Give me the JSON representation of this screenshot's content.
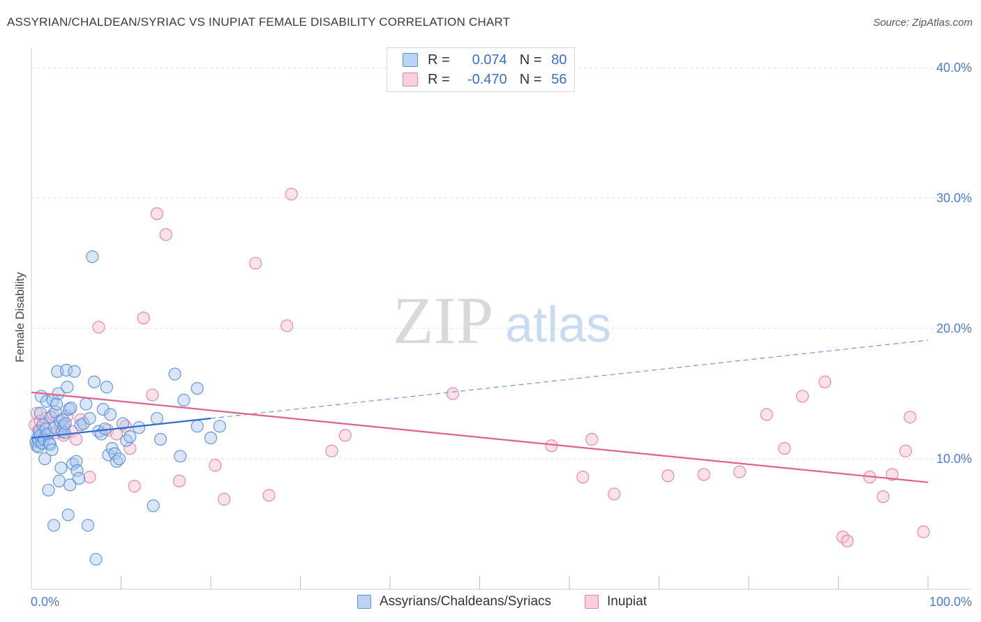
{
  "title": "ASSYRIAN/CHALDEAN/SYRIAC VS INUPIAT FEMALE DISABILITY CORRELATION CHART",
  "source": "Source: ZipAtlas.com",
  "watermark": {
    "zip": "ZIP",
    "atlas": "atlas"
  },
  "legend": {
    "r_label": "R =",
    "n_label": "N =",
    "rows": [
      {
        "r": "0.074",
        "n": "80"
      },
      {
        "r": "-0.470",
        "n": "56"
      }
    ]
  },
  "colors": {
    "blue_fill": "#a9c8f0",
    "blue_stroke": "#5a8fd8",
    "blue_line": "#2f6ecf",
    "pink_fill": "#f7bfd0",
    "pink_stroke": "#e77fa0",
    "pink_line": "#e0608e",
    "tick_text": "#4a7cc8",
    "grid": "#dddddd"
  },
  "chart_data": {
    "type": "scatter",
    "title": "ASSYRIAN/CHALDEAN/SYRIAC VS INUPIAT FEMALE DISABILITY CORRELATION CHART",
    "xlabel": "",
    "ylabel": "Female Disability",
    "xlim": [
      0,
      100
    ],
    "ylim": [
      0,
      40
    ],
    "x_tick_labels": [
      "0.0%",
      "100.0%"
    ],
    "y_ticks": [
      10,
      20,
      30,
      40
    ],
    "y_tick_labels": [
      "10.0%",
      "20.0%",
      "30.0%",
      "40.0%"
    ],
    "grid": true,
    "legend_position": "top-center",
    "series": [
      {
        "name": "Assyrians/Chaldeans/Syriacs",
        "r": 0.074,
        "n": 80,
        "trend": {
          "x0": 0,
          "y0": 11.6,
          "x1": 20,
          "y1": 13.1,
          "dashed_to": 100,
          "y_end": 19.1
        },
        "points": [
          [
            0.5,
            11.3
          ],
          [
            0.6,
            11.0
          ],
          [
            0.7,
            11.6
          ],
          [
            0.8,
            10.9
          ],
          [
            0.8,
            11.4
          ],
          [
            0.9,
            12.1
          ],
          [
            1.0,
            11.8
          ],
          [
            1.0,
            13.5
          ],
          [
            1.1,
            14.8
          ],
          [
            1.2,
            11.2
          ],
          [
            1.3,
            12.6
          ],
          [
            1.4,
            11.5
          ],
          [
            1.5,
            10.0
          ],
          [
            1.6,
            12.3
          ],
          [
            1.7,
            14.4
          ],
          [
            1.8,
            11.9
          ],
          [
            1.9,
            7.6
          ],
          [
            2.0,
            11.2
          ],
          [
            2.1,
            11.1
          ],
          [
            2.2,
            13.2
          ],
          [
            2.3,
            10.7
          ],
          [
            2.4,
            14.5
          ],
          [
            2.5,
            4.9
          ],
          [
            2.6,
            12.4
          ],
          [
            2.7,
            13.6
          ],
          [
            2.8,
            14.2
          ],
          [
            2.9,
            16.7
          ],
          [
            3.0,
            15.0
          ],
          [
            3.1,
            8.3
          ],
          [
            3.2,
            12.9
          ],
          [
            3.3,
            9.3
          ],
          [
            3.4,
            12.1
          ],
          [
            3.5,
            13.0
          ],
          [
            3.6,
            12.5
          ],
          [
            3.7,
            12.0
          ],
          [
            3.8,
            12.7
          ],
          [
            3.9,
            16.8
          ],
          [
            4.0,
            15.5
          ],
          [
            4.1,
            5.7
          ],
          [
            4.2,
            13.8
          ],
          [
            4.3,
            8.0
          ],
          [
            4.4,
            13.9
          ],
          [
            4.6,
            9.6
          ],
          [
            4.8,
            16.7
          ],
          [
            5.0,
            9.8
          ],
          [
            5.1,
            9.1
          ],
          [
            5.3,
            8.5
          ],
          [
            5.5,
            12.6
          ],
          [
            5.8,
            12.7
          ],
          [
            6.1,
            14.2
          ],
          [
            6.3,
            4.9
          ],
          [
            6.5,
            13.1
          ],
          [
            7.0,
            15.9
          ],
          [
            7.2,
            2.3
          ],
          [
            7.5,
            12.1
          ],
          [
            7.8,
            11.9
          ],
          [
            8.0,
            13.8
          ],
          [
            8.2,
            12.3
          ],
          [
            8.4,
            15.5
          ],
          [
            8.6,
            10.3
          ],
          [
            8.8,
            13.4
          ],
          [
            9.0,
            10.8
          ],
          [
            9.3,
            10.4
          ],
          [
            9.5,
            9.8
          ],
          [
            9.8,
            10.0
          ],
          [
            10.2,
            12.7
          ],
          [
            10.6,
            11.4
          ],
          [
            11.0,
            11.7
          ],
          [
            12.0,
            12.4
          ],
          [
            13.6,
            6.4
          ],
          [
            14.0,
            13.1
          ],
          [
            14.4,
            11.5
          ],
          [
            16.0,
            16.5
          ],
          [
            16.6,
            10.2
          ],
          [
            17.0,
            14.5
          ],
          [
            18.5,
            12.5
          ],
          [
            20.0,
            11.6
          ],
          [
            21.0,
            12.5
          ],
          [
            6.8,
            25.5
          ],
          [
            18.5,
            15.4
          ]
        ]
      },
      {
        "name": "Inupiat",
        "r": -0.47,
        "n": 56,
        "trend": {
          "x0": 0,
          "y0": 15.1,
          "x1": 100,
          "y1": 8.2
        },
        "points": [
          [
            0.4,
            12.6
          ],
          [
            0.6,
            13.5
          ],
          [
            0.8,
            12.2
          ],
          [
            1.0,
            12.9
          ],
          [
            1.2,
            11.8
          ],
          [
            1.4,
            12.0
          ],
          [
            1.6,
            13.1
          ],
          [
            2.0,
            12.7
          ],
          [
            2.4,
            13.4
          ],
          [
            2.8,
            12.0
          ],
          [
            3.2,
            12.5
          ],
          [
            3.6,
            11.8
          ],
          [
            4.0,
            13.3
          ],
          [
            4.5,
            12.1
          ],
          [
            5.0,
            11.5
          ],
          [
            5.5,
            13.0
          ],
          [
            6.5,
            8.6
          ],
          [
            7.5,
            20.1
          ],
          [
            8.5,
            12.2
          ],
          [
            9.5,
            11.9
          ],
          [
            10.5,
            12.5
          ],
          [
            11.0,
            10.8
          ],
          [
            11.5,
            7.9
          ],
          [
            12.5,
            20.8
          ],
          [
            13.5,
            14.9
          ],
          [
            14.0,
            28.8
          ],
          [
            15.0,
            27.2
          ],
          [
            16.5,
            8.3
          ],
          [
            20.5,
            9.5
          ],
          [
            21.5,
            6.9
          ],
          [
            25.0,
            25.0
          ],
          [
            26.5,
            7.2
          ],
          [
            28.5,
            20.2
          ],
          [
            29.0,
            30.3
          ],
          [
            33.5,
            10.6
          ],
          [
            35.0,
            11.8
          ],
          [
            47.0,
            15.0
          ],
          [
            58.0,
            11.0
          ],
          [
            61.5,
            8.6
          ],
          [
            62.5,
            11.5
          ],
          [
            65.0,
            7.3
          ],
          [
            71.0,
            8.7
          ],
          [
            75.0,
            8.8
          ],
          [
            79.0,
            9.0
          ],
          [
            82.0,
            13.4
          ],
          [
            84.0,
            10.8
          ],
          [
            86.0,
            14.8
          ],
          [
            88.5,
            15.9
          ],
          [
            90.5,
            4.0
          ],
          [
            91.0,
            3.7
          ],
          [
            93.5,
            8.6
          ],
          [
            95.0,
            7.1
          ],
          [
            96.0,
            8.8
          ],
          [
            97.5,
            10.6
          ],
          [
            98.0,
            13.2
          ],
          [
            99.5,
            4.4
          ]
        ]
      }
    ]
  },
  "bottom_legend": [
    {
      "label": "Assyrians/Chaldeans/Syriacs"
    },
    {
      "label": "Inupiat"
    }
  ]
}
